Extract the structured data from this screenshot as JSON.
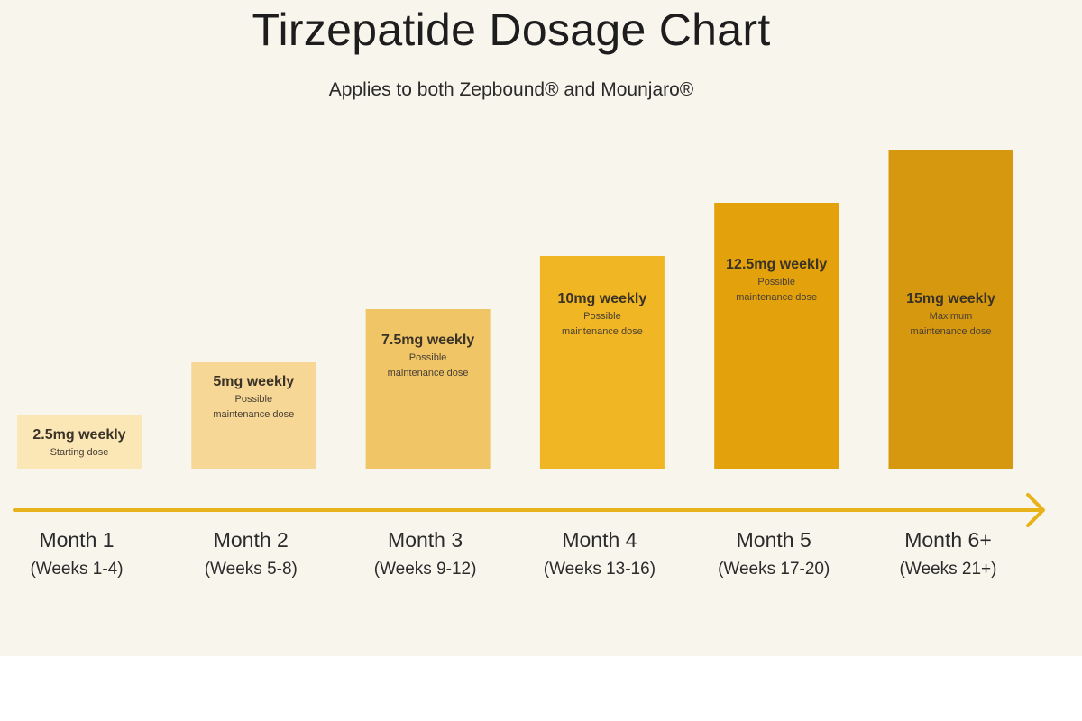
{
  "title": "Tirzepatide Dosage Chart",
  "subtitle": "Applies to both Zepbound® and Mounjaro®",
  "colors": {
    "background": "#f8f5ed",
    "arrow": "#e8b21b",
    "bars": [
      "#fbe6b6",
      "#f6d795",
      "#f0c566",
      "#f0b623",
      "#e3a10c",
      "#d6980e"
    ]
  },
  "chart_data": {
    "type": "bar",
    "title": "Tirzepatide Dosage Chart",
    "subtitle": "Applies to both Zepbound® and Mounjaro®",
    "xlabel": "",
    "ylabel": "",
    "unit": "mg weekly",
    "ylim": [
      0,
      15
    ],
    "grid": false,
    "categories": [
      "Month 1",
      "Month 2",
      "Month 3",
      "Month 4",
      "Month 5",
      "Month 6+"
    ],
    "weeks": [
      "(Weeks 1-4)",
      "(Weeks 5-8)",
      "(Weeks 9-12)",
      "(Weeks 13-16)",
      "(Weeks 17-20)",
      "(Weeks 21+)"
    ],
    "values": [
      2.5,
      5,
      7.5,
      10,
      12.5,
      15
    ],
    "dose_labels": [
      "2.5mg weekly",
      "5mg weekly",
      "7.5mg weekly",
      "10mg weekly",
      "12.5mg weekly",
      "15mg weekly"
    ],
    "notes": [
      [
        "Starting dose"
      ],
      [
        "Possible",
        "maintenance dose"
      ],
      [
        "Possible",
        "maintenance dose"
      ],
      [
        "Possible",
        "maintenance dose"
      ],
      [
        "Possible",
        "maintenance dose"
      ],
      [
        "Maximum",
        "maintenance dose"
      ]
    ]
  }
}
